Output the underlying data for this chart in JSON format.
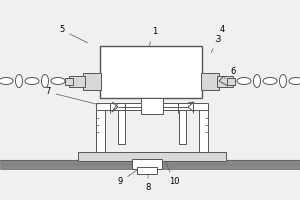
{
  "bg_color": "#f0f0f0",
  "line_color": "#555555",
  "fill_color": "#d8d8d8",
  "lw": 0.7,
  "figw": 3.0,
  "figh": 2.0,
  "dpi": 100
}
